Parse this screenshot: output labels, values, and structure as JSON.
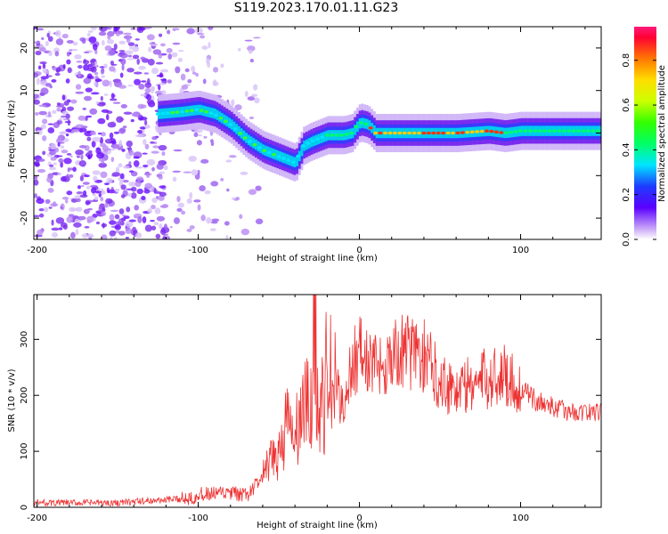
{
  "title": "S119.2023.170.01.11.G23",
  "chart_data": [
    {
      "type": "heatmap",
      "xlabel": "Height of straight line (km)",
      "ylabel": "Frequency (Hz)",
      "xlim": [
        -202,
        150
      ],
      "ylim": [
        -25,
        25
      ],
      "xticks": [
        -200,
        -100,
        0,
        100
      ],
      "xtick_labels": [
        "-200",
        "-100",
        "0",
        "100"
      ],
      "yticks": [
        -20,
        -10,
        0,
        10,
        20
      ],
      "ytick_labels": [
        "-20",
        "-10",
        "0",
        "10",
        "20"
      ],
      "ridge_frequency_hz": {
        "x": [
          -125,
          -110,
          -100,
          -90,
          -80,
          -70,
          -60,
          -50,
          -40,
          -35,
          -30,
          -20,
          -10,
          -5,
          0,
          5,
          10,
          20,
          40,
          60,
          80,
          90,
          100,
          120,
          150
        ],
        "y": [
          4.5,
          5,
          5.5,
          4.5,
          2,
          -1.5,
          -4,
          -5.5,
          -7,
          -3,
          -2,
          -0.5,
          -0.5,
          0,
          2.5,
          2,
          0,
          0,
          0,
          0,
          0.5,
          0,
          0.5,
          0.5,
          0.5
        ]
      },
      "colorbar": {
        "label": "Normalized spectral amplitude",
        "range": [
          0,
          0.95
        ],
        "ticks": [
          0.0,
          0.2,
          0.4,
          0.6,
          0.8
        ],
        "tick_labels": [
          "0.0",
          "0.2",
          "0.4",
          "0.6",
          "0.8"
        ]
      }
    },
    {
      "type": "line",
      "xlabel": "Height of straight line (km)",
      "ylabel": "SNR (10 * v/v)",
      "xlim": [
        -202,
        150
      ],
      "ylim": [
        0,
        380
      ],
      "xticks": [
        -200,
        -100,
        0,
        100
      ],
      "xtick_labels": [
        "-200",
        "-100",
        "0",
        "100"
      ],
      "yticks": [
        0,
        100,
        200,
        300
      ],
      "ytick_labels": [
        "0",
        "100",
        "200",
        "300"
      ],
      "series": [
        {
          "color": "#ee3333",
          "x": [
            -202,
            -150,
            -110,
            -100,
            -80,
            -70,
            -60,
            -50,
            -45,
            -40,
            -35,
            -30,
            -28,
            -25,
            -20,
            -15,
            -10,
            -5,
            0,
            5,
            10,
            20,
            30,
            40,
            50,
            60,
            70,
            80,
            90,
            100,
            110,
            120,
            130,
            140,
            150
          ],
          "y": [
            8,
            8,
            15,
            22,
            25,
            20,
            55,
            100,
            150,
            120,
            180,
            170,
            370,
            140,
            240,
            210,
            180,
            250,
            280,
            260,
            250,
            270,
            280,
            270,
            230,
            210,
            220,
            230,
            240,
            210,
            190,
            180,
            170,
            170,
            170
          ]
        }
      ]
    }
  ]
}
